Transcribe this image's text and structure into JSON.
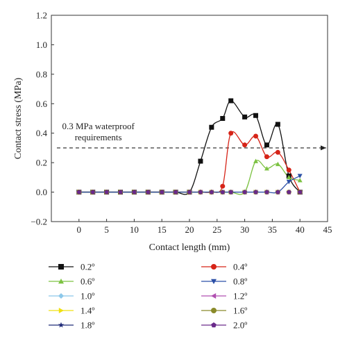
{
  "chart_data": {
    "type": "scatter",
    "title": "",
    "xlabel": "Contact length (mm)",
    "ylabel": "Contact stress (MPa)",
    "xlim": [
      -5,
      45
    ],
    "ylim": [
      -0.2,
      1.2
    ],
    "xticks": [
      0,
      5,
      10,
      15,
      20,
      25,
      30,
      35,
      40,
      45
    ],
    "yticks": [
      -0.2,
      0.0,
      0.2,
      0.4,
      0.6,
      0.8,
      1.0,
      1.2
    ],
    "xtick_labels": [
      "0",
      "5",
      "10",
      "15",
      "20",
      "25",
      "30",
      "35",
      "40",
      "45"
    ],
    "ytick_labels": [
      "−0.2",
      "0.0",
      "0.2",
      "0.4",
      "0.6",
      "0.8",
      "1.0",
      "1.2"
    ],
    "grid": false,
    "legend_position": "bottom",
    "x": [
      0,
      2.5,
      5,
      7.5,
      10,
      12.5,
      15,
      17.5,
      20,
      22,
      24,
      26,
      27.5,
      30,
      32,
      34,
      36,
      38,
      40
    ],
    "threshold": {
      "value": 0.3,
      "label_line1": "0.3 MPa waterproof",
      "label_line2": "requirements",
      "style": "dashed-arrow"
    },
    "series": [
      {
        "name": "0.2º",
        "color": "#111111",
        "marker": "square",
        "values": [
          0,
          0,
          0,
          0,
          0,
          0,
          0,
          0,
          0,
          0.21,
          0.44,
          0.5,
          0.62,
          0.51,
          0.52,
          0.32,
          0.46,
          0.11,
          0
        ]
      },
      {
        "name": "0.4º",
        "color": "#d62418",
        "marker": "circle",
        "values": [
          0,
          0,
          0,
          0,
          0,
          0,
          0,
          0,
          0,
          0,
          0,
          0.04,
          0.4,
          0.32,
          0.38,
          0.24,
          0.27,
          0.15,
          0
        ]
      },
      {
        "name": "0.6º",
        "color": "#7cc242",
        "marker": "triangle-up",
        "values": [
          0,
          0,
          0,
          0,
          0,
          0,
          0,
          0,
          0,
          0,
          0,
          0,
          0,
          0,
          0.21,
          0.16,
          0.19,
          0.1,
          0.08
        ]
      },
      {
        "name": "0.8º",
        "color": "#2b4fa6",
        "marker": "triangle-down",
        "values": [
          0,
          0,
          0,
          0,
          0,
          0,
          0,
          0,
          0,
          0,
          0,
          0,
          0,
          0,
          0,
          0,
          0,
          0.07,
          0.11
        ]
      },
      {
        "name": "1.0º",
        "color": "#8cc8ea",
        "marker": "diamond",
        "values": [
          0,
          0,
          0,
          0,
          0,
          0,
          0,
          0,
          0,
          0,
          0,
          0,
          0,
          0,
          0,
          0,
          0,
          0,
          0
        ]
      },
      {
        "name": "1.2º",
        "color": "#b04fb0",
        "marker": "triangle-left",
        "values": [
          0,
          0,
          0,
          0,
          0,
          0,
          0,
          0,
          0,
          0,
          0,
          0,
          0,
          0,
          0,
          0,
          0,
          0,
          0
        ]
      },
      {
        "name": "1.4º",
        "color": "#f0e010",
        "marker": "triangle-right",
        "values": [
          0,
          0,
          0,
          0,
          0,
          0,
          0,
          0,
          0,
          0,
          0,
          0,
          0,
          0,
          0,
          0,
          0,
          0,
          0
        ]
      },
      {
        "name": "1.6º",
        "color": "#8a8a2a",
        "marker": "circle",
        "values": [
          0,
          0,
          0,
          0,
          0,
          0,
          0,
          0,
          0,
          0,
          0,
          0,
          0,
          0,
          0,
          0,
          0,
          0,
          0
        ]
      },
      {
        "name": "1.8º",
        "color": "#1f2a78",
        "marker": "star",
        "values": [
          0,
          0,
          0,
          0,
          0,
          0,
          0,
          0,
          0,
          0,
          0,
          0,
          0,
          0,
          0,
          0,
          0,
          0,
          0
        ]
      },
      {
        "name": "2.0º",
        "color": "#6a2a8a",
        "marker": "pentagon",
        "values": [
          0,
          0,
          0,
          0,
          0,
          0,
          0,
          0,
          0,
          0,
          0,
          0,
          0,
          0,
          0,
          0,
          0,
          0,
          0
        ]
      }
    ]
  }
}
